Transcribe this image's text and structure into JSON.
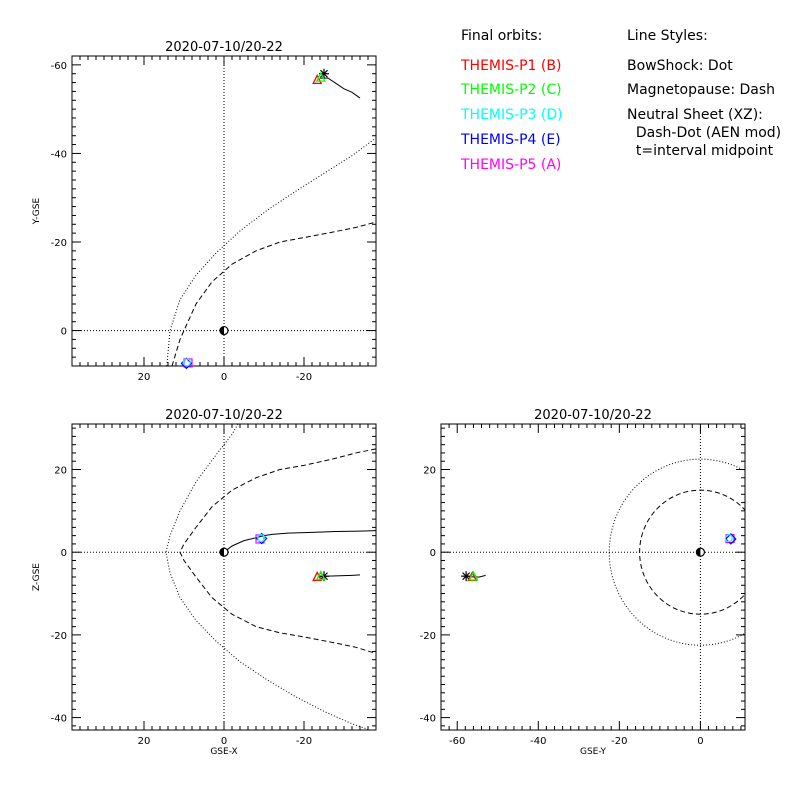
{
  "legend": {
    "orbits_title": "Final orbits:",
    "probes": [
      {
        "label": "THEMIS-P1 (B)",
        "color": "#ff0000"
      },
      {
        "label": "THEMIS-P2 (C)",
        "color": "#00ff00"
      },
      {
        "label": "THEMIS-P3 (D)",
        "color": "#00ffff"
      },
      {
        "label": "THEMIS-P4 (E)",
        "color": "#0000ff"
      },
      {
        "label": "THEMIS-P5 (A)",
        "color": "#ff00ff"
      }
    ],
    "styles_title": "Line Styles:",
    "styles": [
      "BowShock: Dot",
      "Magnetopause: Dash",
      "Neutral Sheet (XZ):",
      "  Dash-Dot (AEN mod)",
      "  t=interval midpoint"
    ]
  },
  "chart_data": [
    {
      "type": "line",
      "id": "xy",
      "title": "2020-07-10/20-22",
      "xlabel": "",
      "ylabel": "Y-GSE",
      "xlim": [
        38,
        -38
      ],
      "ylim": [
        8,
        -62
      ],
      "xticks": [
        20,
        0,
        -20
      ],
      "yticks": [
        0,
        -20,
        -40,
        -60
      ],
      "grid": false,
      "series": [
        {
          "style": "dot",
          "x": [
            14.5,
            13.5,
            11.0,
            7.0,
            2.0,
            -4.0,
            -11.0,
            -18.0,
            -25.0,
            -32.0,
            -38.0
          ],
          "y": [
            10.0,
            0.0,
            -7.0,
            -12.5,
            -17.5,
            -22.5,
            -27.3,
            -31.5,
            -35.5,
            -39.5,
            -43.5
          ]
        },
        {
          "style": "dash",
          "x": [
            13.0,
            11.0,
            10.0,
            7.0,
            3.0,
            -2.0,
            -8.0,
            -14.0,
            -20.0,
            -27.0,
            -33.0,
            -38.0
          ],
          "y": [
            8.0,
            2.0,
            0.0,
            -6.0,
            -11.0,
            -15.0,
            -18.0,
            -20.0,
            -21.0,
            -22.2,
            -23.3,
            -24.5
          ]
        },
        {
          "style": "solid",
          "x": [
            -24.0,
            -26.0,
            -28.0,
            -30.0,
            -32.0,
            -34.0
          ],
          "y": [
            -57.0,
            -57.0,
            -55.8,
            -54.6,
            -53.8,
            -52.5
          ]
        }
      ],
      "markers": [
        {
          "symbol": "star",
          "x": -25.0,
          "y": -58.0,
          "color": "#000000"
        },
        {
          "symbol": "triangle",
          "x": -23.3,
          "y": -56.5,
          "color": "#ff0000"
        },
        {
          "symbol": "triangle",
          "x": -24.2,
          "y": -57.0,
          "color": "#00ff00"
        },
        {
          "symbol": "square",
          "x": 9.0,
          "y": 7.3,
          "color": "#ff00ff"
        },
        {
          "symbol": "diamond",
          "x": 9.4,
          "y": 7.4,
          "color": "#0000ff"
        },
        {
          "symbol": "circle-cyan",
          "x": 9.3,
          "y": 7.2,
          "color": "#00ffff"
        },
        {
          "symbol": "earth",
          "x": 0.0,
          "y": 0.0,
          "color": "#000000"
        }
      ]
    },
    {
      "type": "line",
      "id": "xz",
      "title": "2020-07-10/20-22",
      "xlabel": "GSE-X",
      "ylabel": "Z-GSE",
      "xlim": [
        38,
        -38
      ],
      "ylim": [
        -43,
        31
      ],
      "xticks": [
        20,
        0,
        -20
      ],
      "yticks": [
        20,
        0,
        -20,
        -40
      ],
      "grid": false,
      "series": [
        {
          "style": "dot",
          "x": [
            -3.5,
            -2.0,
            2.0,
            7.0,
            11.0,
            13.5,
            14.5,
            13.5,
            11.0,
            7.0,
            2.0,
            -4.0,
            -11.0,
            -18.0,
            -25.0,
            -32.0,
            -38.0
          ],
          "y": [
            31.0,
            28.5,
            23.5,
            17.0,
            10.0,
            4.0,
            0.0,
            -5.0,
            -11.0,
            -16.5,
            -21.5,
            -26.5,
            -31.0,
            -35.0,
            -38.5,
            -41.5,
            -43.5
          ]
        },
        {
          "style": "dash",
          "x": [
            -38.0,
            -33.0,
            -27.0,
            -20.0,
            -14.0,
            -8.0,
            -2.0,
            3.0,
            7.0,
            10.0,
            11.0,
            10.0,
            7.0,
            3.0,
            -2.0,
            -8.0,
            -14.0,
            -20.0,
            -27.0,
            -33.0,
            -38.0
          ],
          "y": [
            25.0,
            24.0,
            22.5,
            21.0,
            20.0,
            18.0,
            15.0,
            11.0,
            6.0,
            2.0,
            0.0,
            -2.0,
            -6.0,
            -11.0,
            -15.0,
            -18.0,
            -19.5,
            -20.5,
            -21.8,
            -23.0,
            -24.5
          ]
        },
        {
          "style": "solid",
          "x": [
            0.0,
            2.0,
            5.0,
            8.0,
            10.0,
            12.0,
            16.0,
            22.0,
            28.0,
            34.0,
            38.0
          ],
          "y": [
            0.0,
            1.5,
            2.8,
            3.5,
            4.0,
            4.3,
            4.6,
            4.8,
            5.0,
            5.1,
            5.2
          ],
          "xdata": "neg"
        },
        {
          "style": "solid",
          "x": [
            -23.5,
            -26.0,
            -29.0,
            -32.0,
            -34.0
          ],
          "y": [
            -6.0,
            -5.8,
            -5.7,
            -5.6,
            -5.5
          ]
        }
      ],
      "markers": [
        {
          "symbol": "star",
          "x": -25.0,
          "y": -5.8,
          "color": "#000000"
        },
        {
          "symbol": "triangle",
          "x": -23.3,
          "y": -6.1,
          "color": "#ff0000"
        },
        {
          "symbol": "triangle",
          "x": -24.2,
          "y": -5.9,
          "color": "#00ff00"
        },
        {
          "symbol": "square",
          "x": -9.0,
          "y": 3.2,
          "color": "#ff00ff"
        },
        {
          "symbol": "diamond",
          "x": -9.4,
          "y": 3.3,
          "color": "#0000ff"
        },
        {
          "symbol": "circle-cyan",
          "x": -9.3,
          "y": 3.4,
          "color": "#00ffff"
        },
        {
          "symbol": "earth",
          "x": 0.0,
          "y": 0.0,
          "color": "#000000"
        }
      ]
    },
    {
      "type": "line",
      "id": "yz",
      "title": "2020-07-10/20-22",
      "xlabel": "GSE-Y",
      "ylabel": "",
      "xlim": [
        -64,
        11
      ],
      "ylim": [
        -43,
        31
      ],
      "xticks": [
        -60,
        -40,
        -20,
        0
      ],
      "yticks": [
        20,
        0,
        -20,
        -40
      ],
      "grid": false,
      "series": [
        {
          "style": "dot-circle",
          "x": [
            0
          ],
          "y": [
            0
          ],
          "r": 22.5
        },
        {
          "style": "dash-circle",
          "x": [
            0
          ],
          "y": [
            0
          ],
          "r": 15.0
        },
        {
          "style": "solid",
          "x": [
            -57.5,
            -56.0,
            -54.5,
            -53.0
          ],
          "y": [
            -5.8,
            -6.0,
            -6.0,
            -5.6
          ]
        }
      ],
      "markers": [
        {
          "symbol": "star",
          "x": -57.8,
          "y": -5.8,
          "color": "#000000"
        },
        {
          "symbol": "triangle",
          "x": -56.3,
          "y": -6.1,
          "color": "#ff0000"
        },
        {
          "symbol": "triangle",
          "x": -56.0,
          "y": -6.0,
          "color": "#00ff00"
        },
        {
          "symbol": "square",
          "x": 7.3,
          "y": 3.3,
          "color": "#ff00ff"
        },
        {
          "symbol": "diamond",
          "x": 7.5,
          "y": 3.2,
          "color": "#0000ff"
        },
        {
          "symbol": "circle-cyan",
          "x": 7.0,
          "y": 3.4,
          "color": "#00ffff"
        },
        {
          "symbol": "earth",
          "x": 0.0,
          "y": 0.0,
          "color": "#000000"
        }
      ]
    }
  ]
}
